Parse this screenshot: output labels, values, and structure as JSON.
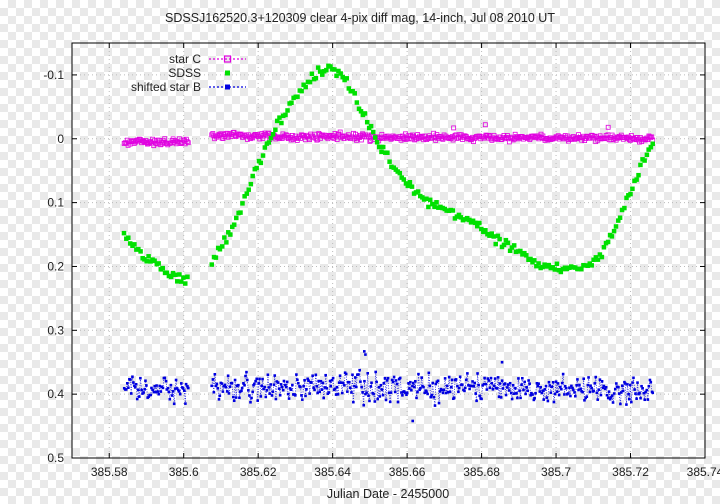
{
  "colors": {
    "star_c": "#e000e0",
    "sdss": "#00e000",
    "star_b": "#0000e0",
    "grid": "#bbbbbb",
    "frame": "#000000"
  },
  "chart_data": {
    "type": "scatter",
    "title": "SDSSJ162520.3+120309 clear 4-pix diff mag, 14-inch, Jul 08 2010 UT",
    "xlabel": "Julian Date - 2455000",
    "ylabel": "",
    "xlim": [
      385.57,
      385.74
    ],
    "ylim": [
      0.5,
      -0.15
    ],
    "y_inverted": true,
    "grid": true,
    "legend_position": "top-left",
    "x_ticks": [
      {
        "value": 385.58,
        "label": "385.58"
      },
      {
        "value": 385.6,
        "label": "385.6"
      },
      {
        "value": 385.62,
        "label": "385.62"
      },
      {
        "value": 385.64,
        "label": "385.64"
      },
      {
        "value": 385.66,
        "label": "385.66"
      },
      {
        "value": 385.68,
        "label": "385.68"
      },
      {
        "value": 385.7,
        "label": "385.7"
      },
      {
        "value": 385.72,
        "label": "385.72"
      },
      {
        "value": 385.74,
        "label": "385.74"
      }
    ],
    "y_ticks": [
      {
        "value": -0.1,
        "label": "-0.1"
      },
      {
        "value": 0,
        "label": "0"
      },
      {
        "value": 0.1,
        "label": "0.1"
      },
      {
        "value": 0.2,
        "label": "0.2"
      },
      {
        "value": 0.3,
        "label": "0.3"
      },
      {
        "value": 0.4,
        "label": "0.4"
      },
      {
        "value": 0.5,
        "label": "0.5"
      }
    ],
    "gaps": [
      [
        385.6015,
        385.6075
      ]
    ],
    "x_range": [
      385.584,
      385.726
    ],
    "series": [
      {
        "name": "star C",
        "marker": "open-square",
        "line": "dotted",
        "color_key": "star_c",
        "curve": [
          [
            385.584,
            0.005
          ],
          [
            385.59,
            0.004
          ],
          [
            385.595,
            0.006
          ],
          [
            385.6,
            0.003
          ],
          [
            385.608,
            -0.006
          ],
          [
            385.62,
            -0.004
          ],
          [
            385.63,
            -0.003
          ],
          [
            385.64,
            -0.003
          ],
          [
            385.66,
            -0.002
          ],
          [
            385.68,
            -0.002
          ],
          [
            385.7,
            -0.001
          ],
          [
            385.715,
            -0.002
          ],
          [
            385.726,
            0.0
          ]
        ],
        "scatter": 0.006,
        "outliers": [
          [
            385.681,
            -0.022
          ],
          [
            385.714,
            -0.018
          ],
          [
            385.6725,
            -0.017
          ]
        ]
      },
      {
        "name": "SDSS",
        "marker": "filled-square",
        "line": "none",
        "color_key": "sdss",
        "curve": [
          [
            385.584,
            0.155
          ],
          [
            385.59,
            0.185
          ],
          [
            385.595,
            0.205
          ],
          [
            385.601,
            0.225
          ],
          [
            385.6075,
            0.195
          ],
          [
            385.612,
            0.15
          ],
          [
            385.616,
            0.1
          ],
          [
            385.62,
            0.04
          ],
          [
            385.624,
            -0.01
          ],
          [
            385.628,
            -0.05
          ],
          [
            385.632,
            -0.08
          ],
          [
            385.636,
            -0.105
          ],
          [
            385.64,
            -0.11
          ],
          [
            385.644,
            -0.09
          ],
          [
            385.648,
            -0.045
          ],
          [
            385.652,
            0.005
          ],
          [
            385.656,
            0.04
          ],
          [
            385.66,
            0.07
          ],
          [
            385.664,
            0.09
          ],
          [
            385.668,
            0.105
          ],
          [
            385.672,
            0.115
          ],
          [
            385.676,
            0.125
          ],
          [
            385.68,
            0.14
          ],
          [
            385.685,
            0.16
          ],
          [
            385.69,
            0.175
          ],
          [
            385.695,
            0.195
          ],
          [
            385.7,
            0.205
          ],
          [
            385.706,
            0.205
          ],
          [
            385.712,
            0.185
          ],
          [
            385.716,
            0.14
          ],
          [
            385.72,
            0.08
          ],
          [
            385.723,
            0.04
          ],
          [
            385.726,
            0.005
          ]
        ],
        "scatter": 0.009,
        "outliers": []
      },
      {
        "name": "shifted star B",
        "marker": "filled-square",
        "line": "dotted",
        "color_key": "star_b",
        "curve": [
          [
            385.584,
            0.395
          ],
          [
            385.6,
            0.395
          ],
          [
            385.608,
            0.39
          ],
          [
            385.64,
            0.39
          ],
          [
            385.68,
            0.39
          ],
          [
            385.726,
            0.395
          ]
        ],
        "scatter": 0.025,
        "outliers": [
          [
            385.6485,
            0.333
          ],
          [
            385.6488,
            0.338
          ],
          [
            385.6855,
            0.35
          ],
          [
            385.6615,
            0.442
          ]
        ]
      }
    ]
  }
}
